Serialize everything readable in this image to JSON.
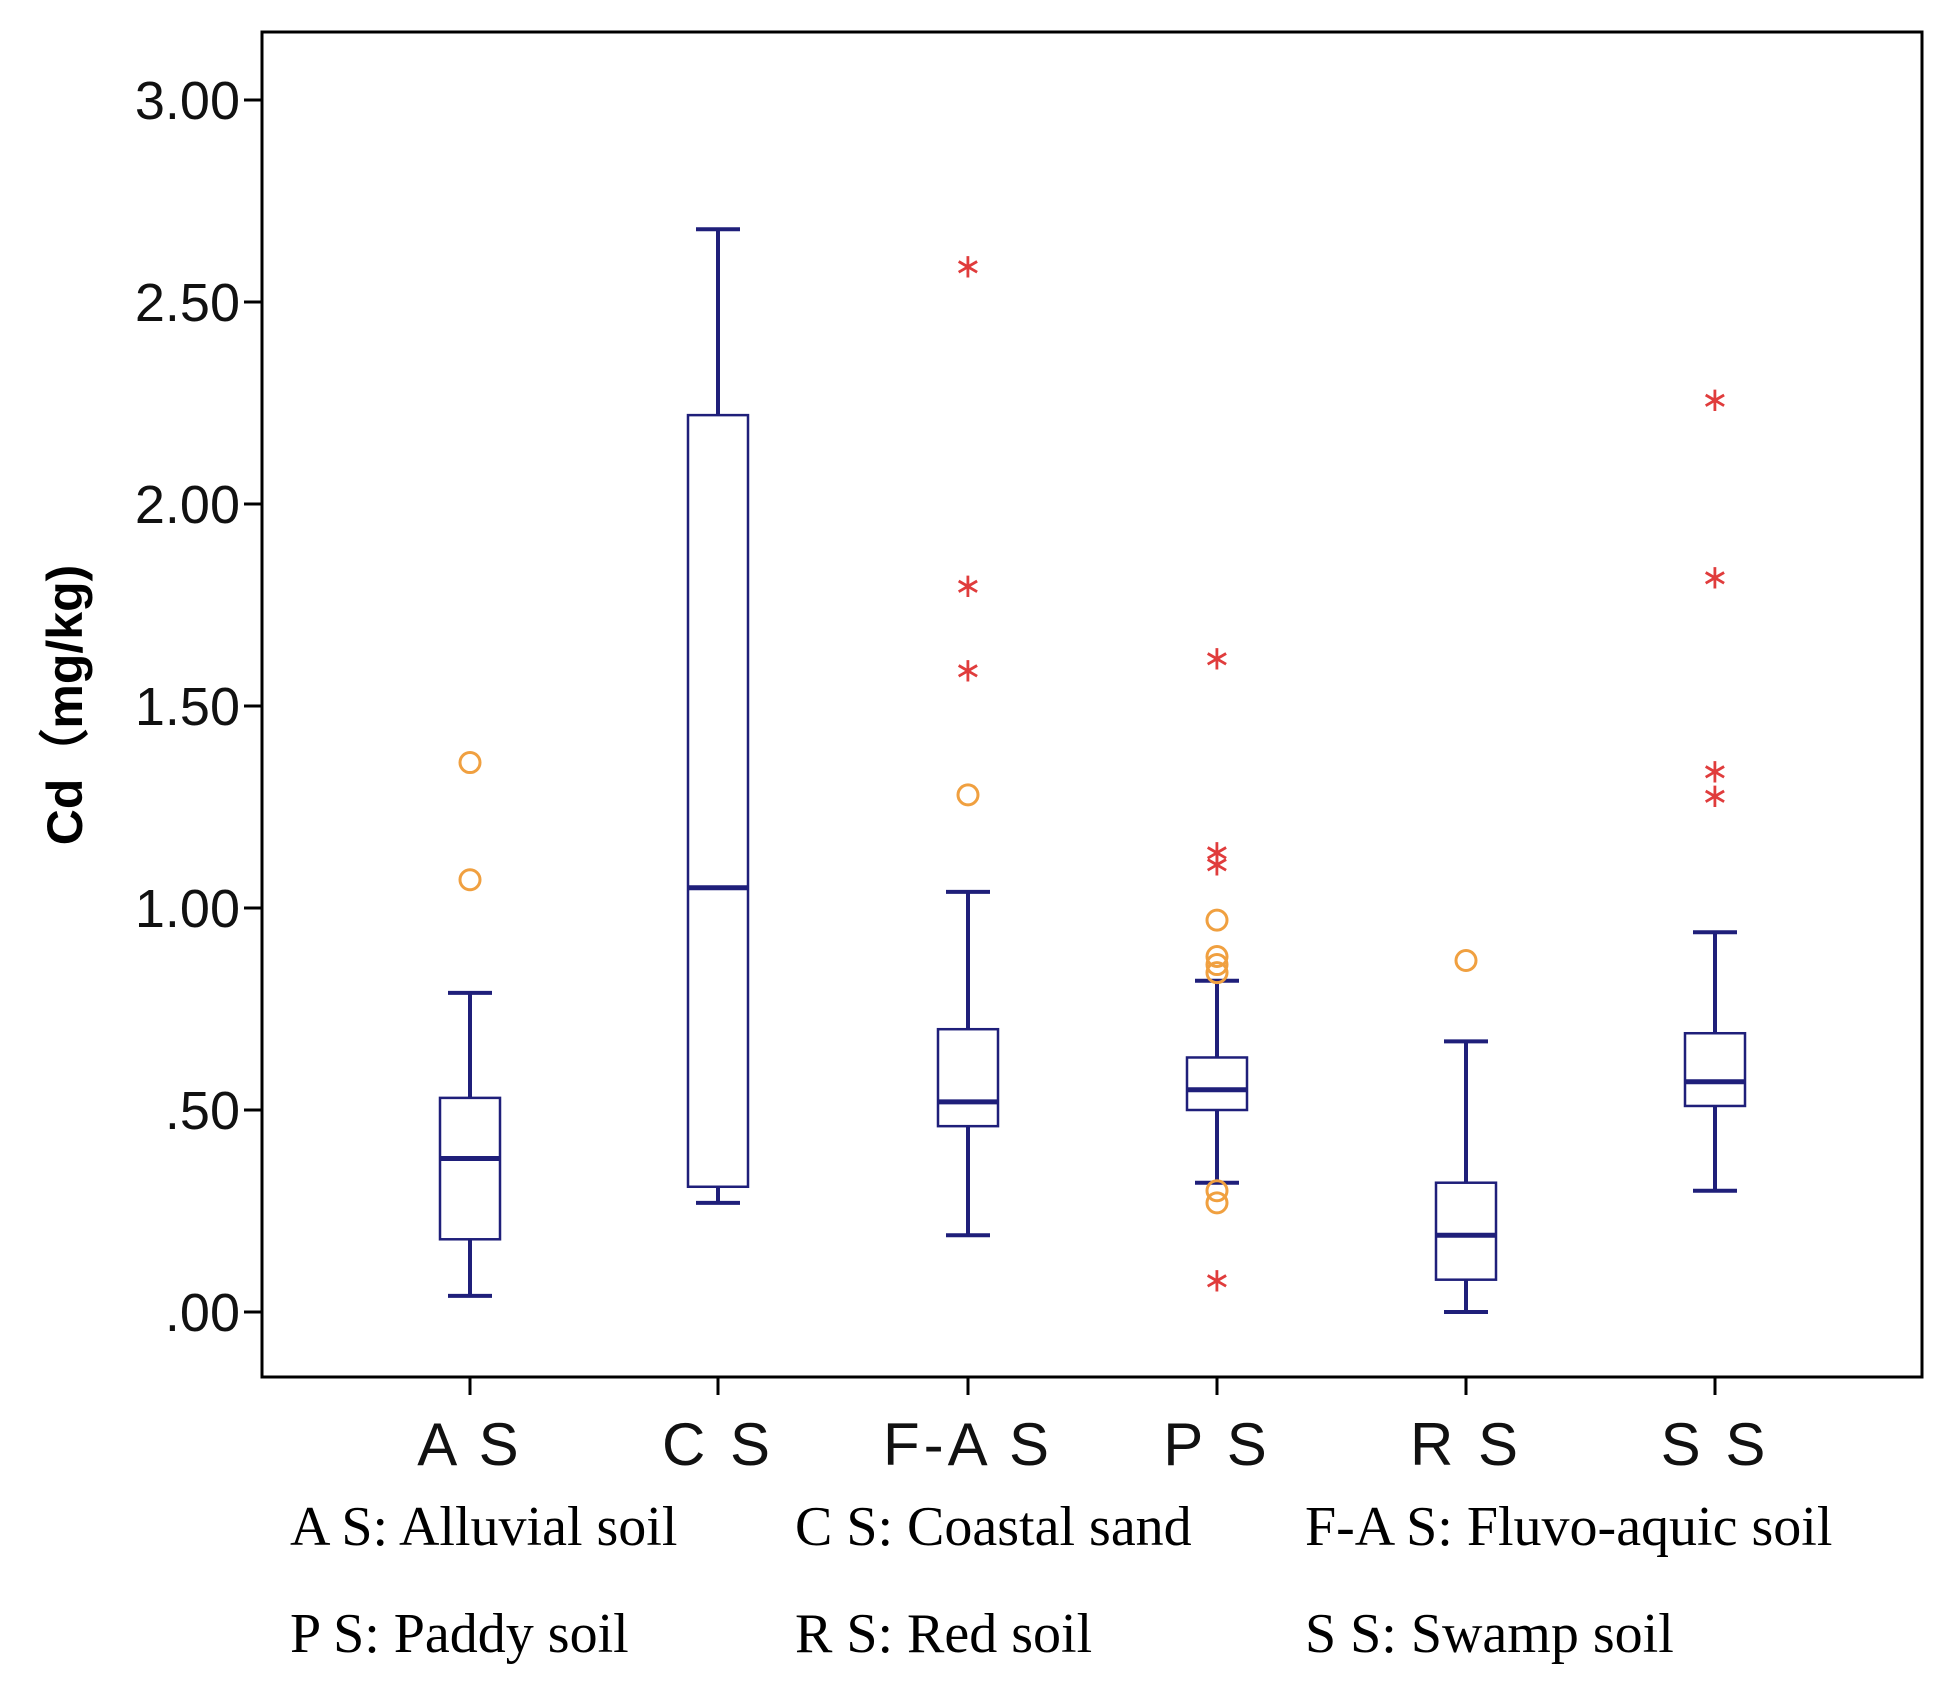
{
  "chart_data": {
    "type": "boxplot",
    "ylabel": "Cd（mg/kg)",
    "ylim": [
      -0.17,
      3.17
    ],
    "yticks": [
      0,
      0.5,
      1.0,
      1.5,
      2.0,
      2.5,
      3.0
    ],
    "ytick_labels": [
      ".00",
      ".50",
      "1.00",
      "1.50",
      "2.00",
      "2.50",
      "3.00"
    ],
    "categories": [
      "A S",
      "C S",
      "F-A S",
      "P S",
      "R S",
      "S S"
    ],
    "series": [
      {
        "name": "A S",
        "whisker_low": 0.04,
        "q1": 0.18,
        "median": 0.38,
        "q3": 0.53,
        "whisker_high": 0.79,
        "outliers_circle": [
          1.07,
          1.36
        ],
        "outliers_star": []
      },
      {
        "name": "C S",
        "whisker_low": 0.27,
        "q1": 0.31,
        "median": 1.05,
        "q3": 2.22,
        "whisker_high": 2.68,
        "outliers_circle": [],
        "outliers_star": []
      },
      {
        "name": "F-A S",
        "whisker_low": 0.19,
        "q1": 0.46,
        "median": 0.52,
        "q3": 0.7,
        "whisker_high": 1.04,
        "outliers_circle": [
          1.28
        ],
        "outliers_star": [
          1.59,
          1.8,
          2.59
        ]
      },
      {
        "name": "P S",
        "whisker_low": 0.32,
        "q1": 0.5,
        "median": 0.55,
        "q3": 0.63,
        "whisker_high": 0.82,
        "outliers_circle": [
          0.27,
          0.3,
          0.84,
          0.86,
          0.88,
          0.97
        ],
        "outliers_star": [
          0.08,
          1.11,
          1.14,
          1.62
        ]
      },
      {
        "name": "R S",
        "whisker_low": 0.0,
        "q1": 0.08,
        "median": 0.19,
        "q3": 0.32,
        "whisker_high": 0.67,
        "outliers_circle": [
          0.87
        ],
        "outliers_star": []
      },
      {
        "name": "S S",
        "whisker_low": 0.3,
        "q1": 0.51,
        "median": 0.57,
        "q3": 0.69,
        "whisker_high": 0.94,
        "outliers_circle": [],
        "outliers_star": [
          1.28,
          1.34,
          1.82,
          2.26
        ]
      }
    ],
    "legend": [
      [
        "A S: Alluvial soil",
        "C S: Coastal sand",
        "F-A S: Fluvo-aquic soil"
      ],
      [
        "P S: Paddy soil",
        "R S: Red soil",
        "S S: Swamp soil"
      ]
    ],
    "colors": {
      "box": "#1f1f7a",
      "circle": "#f0a040",
      "star": "#e03c3c",
      "axis": "#000000"
    }
  }
}
